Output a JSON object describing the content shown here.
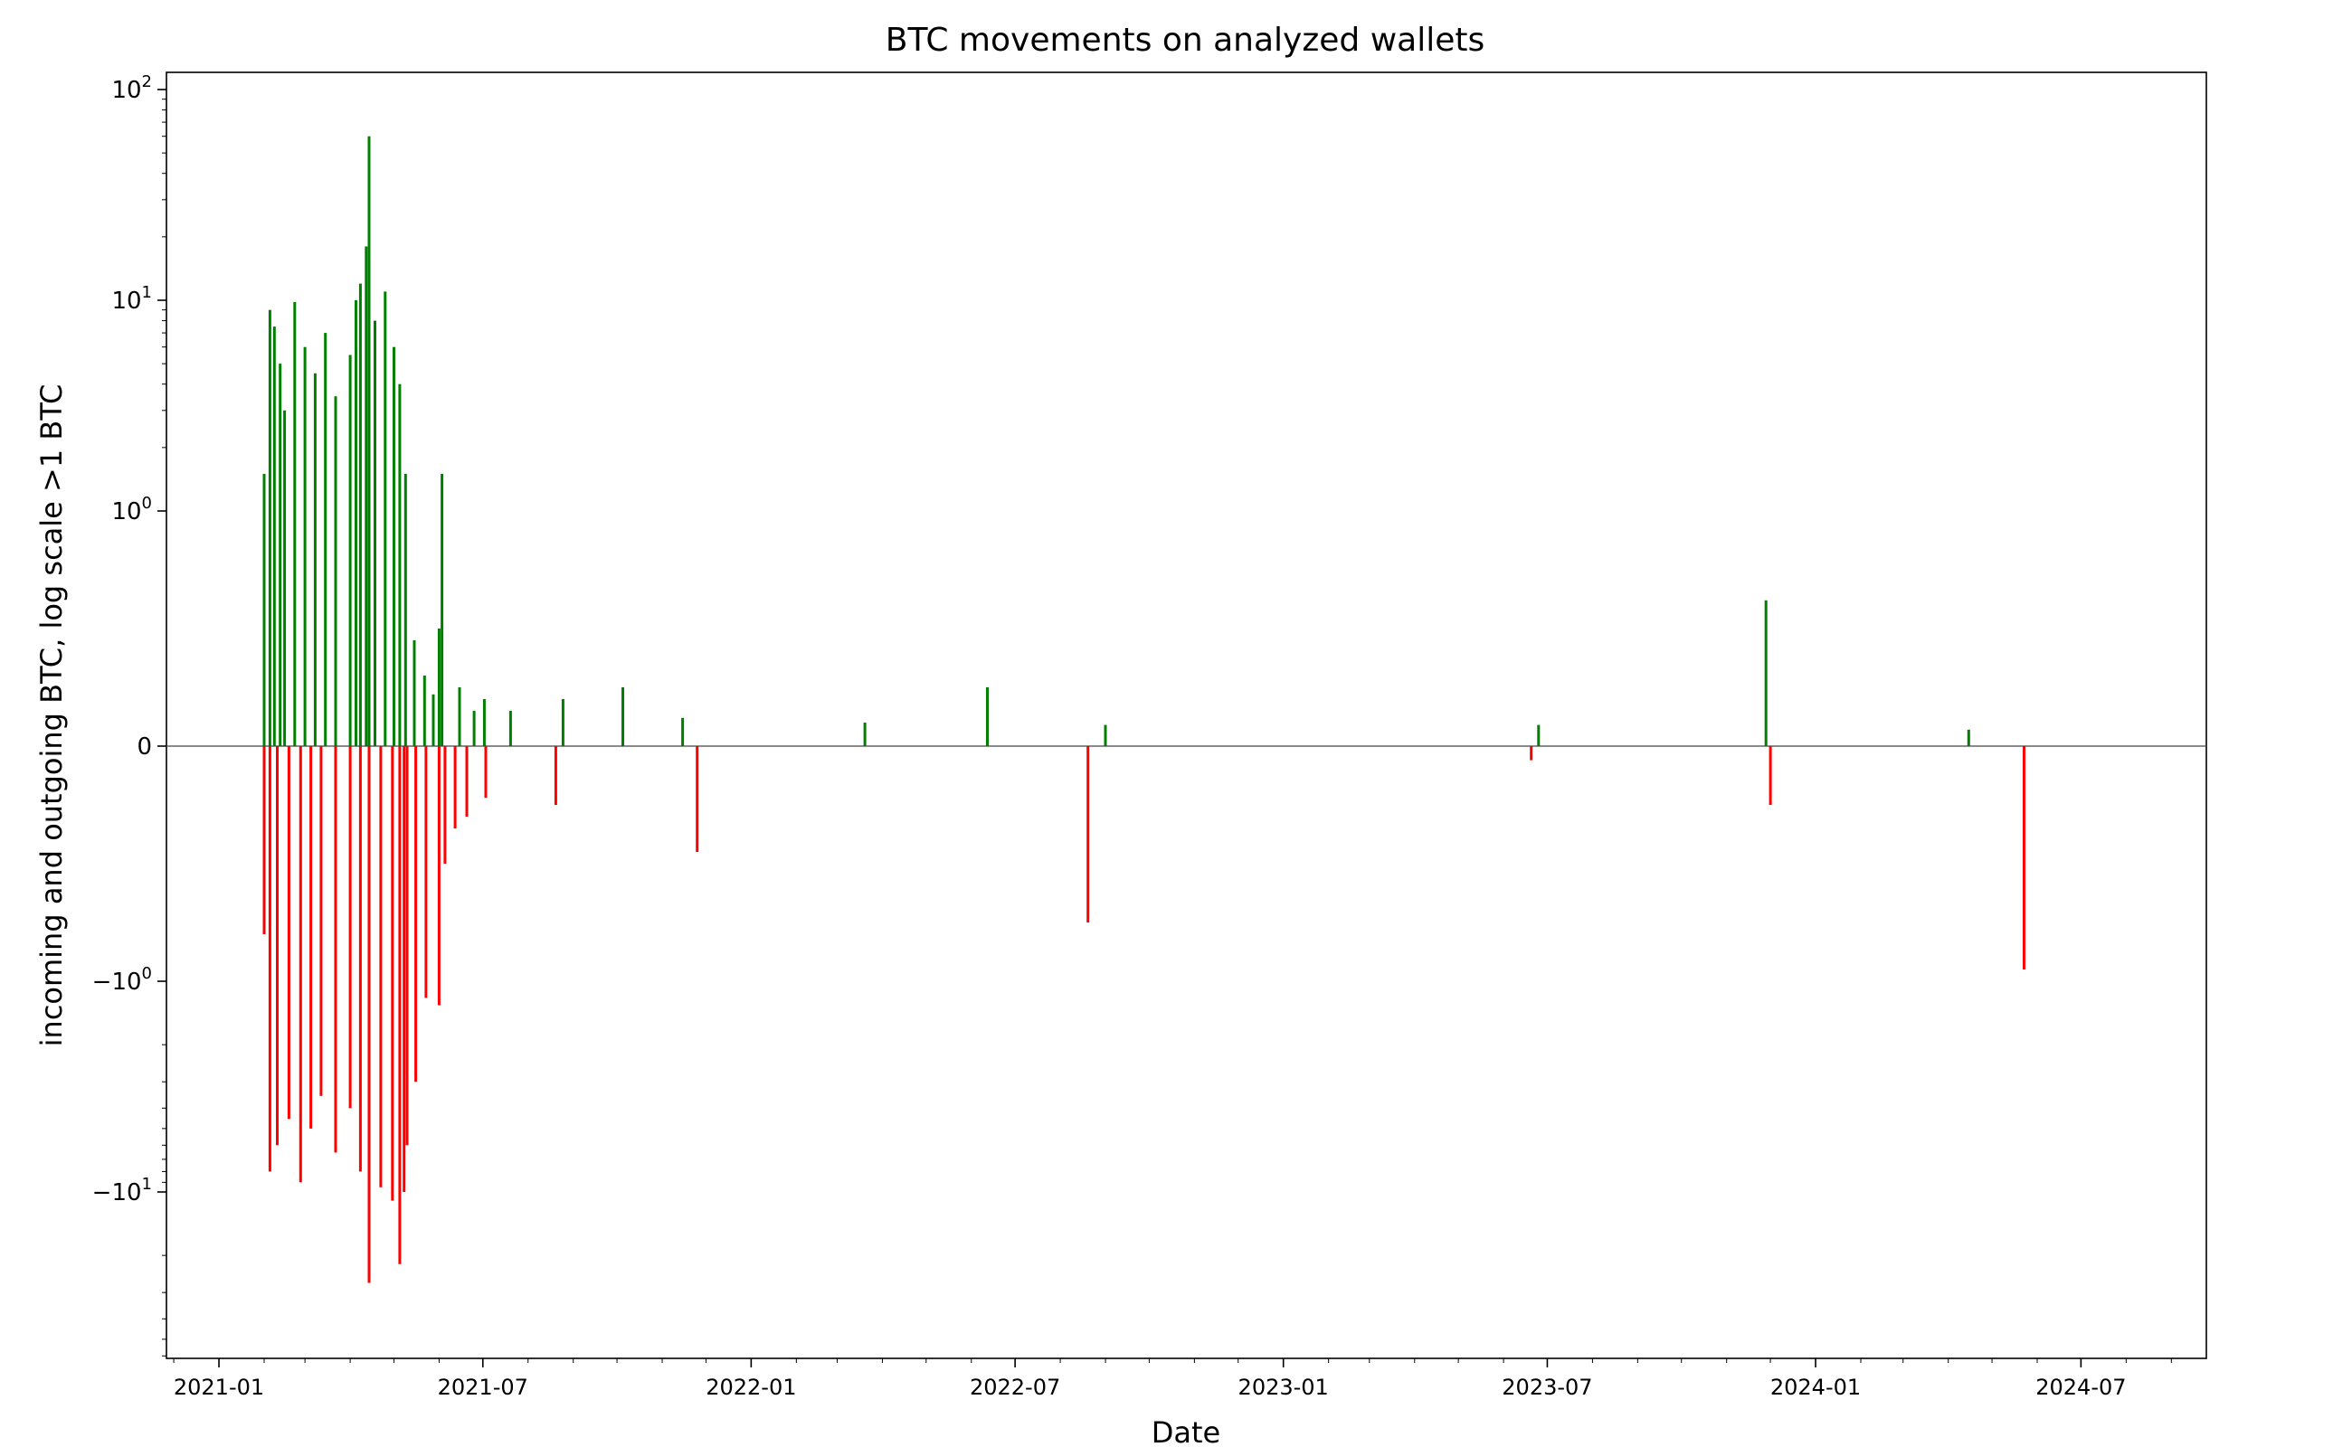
{
  "chart_data": {
    "type": "bar",
    "title": "BTC movements on analyzed wallets",
    "xlabel": "Date",
    "ylabel": "incoming and outgoing BTC, log scale >1 BTC",
    "yscale": "symlog",
    "ylim": [
      -70,
      100
    ],
    "xlim": [
      "2020-11-26",
      "2024-09-25"
    ],
    "grid": false,
    "legend": "none",
    "colors": {
      "incoming": "#008000",
      "outgoing": "#ff0000"
    },
    "x_ticks": [
      "2021-01",
      "2021-07",
      "2022-01",
      "2022-07",
      "2023-01",
      "2023-07",
      "2024-01",
      "2024-07"
    ],
    "y_ticks": [
      {
        "value": 100,
        "base": "10",
        "exp": "2",
        "sign": ""
      },
      {
        "value": 10,
        "base": "10",
        "exp": "1",
        "sign": ""
      },
      {
        "value": 1,
        "base": "10",
        "exp": "0",
        "sign": ""
      },
      {
        "value": 0,
        "label": "0"
      },
      {
        "value": -1,
        "base": "10",
        "exp": "0",
        "sign": "−"
      },
      {
        "value": -10,
        "base": "10",
        "exp": "1",
        "sign": "−"
      }
    ],
    "series": [
      {
        "key": "incoming",
        "points": [
          [
            "2021-02-01",
            1.5
          ],
          [
            "2021-02-05",
            9.0
          ],
          [
            "2021-02-08",
            7.5
          ],
          [
            "2021-02-12",
            5.0
          ],
          [
            "2021-02-15",
            3.0
          ],
          [
            "2021-02-22",
            9.8
          ],
          [
            "2021-03-01",
            6.0
          ],
          [
            "2021-03-08",
            4.5
          ],
          [
            "2021-03-15",
            7.0
          ],
          [
            "2021-03-22",
            3.5
          ],
          [
            "2021-04-01",
            5.5
          ],
          [
            "2021-04-05",
            10.0
          ],
          [
            "2021-04-08",
            12.0
          ],
          [
            "2021-04-12",
            18.0
          ],
          [
            "2021-04-14",
            60.0
          ],
          [
            "2021-04-18",
            8.0
          ],
          [
            "2021-04-25",
            11.0
          ],
          [
            "2021-05-01",
            6.0
          ],
          [
            "2021-05-05",
            4.0
          ],
          [
            "2021-05-09",
            1.5
          ],
          [
            "2021-05-15",
            0.45
          ],
          [
            "2021-05-22",
            0.3
          ],
          [
            "2021-05-28",
            0.22
          ],
          [
            "2021-06-01",
            0.5
          ],
          [
            "2021-06-03",
            1.5
          ],
          [
            "2021-06-15",
            0.25
          ],
          [
            "2021-06-25",
            0.15
          ],
          [
            "2021-07-02",
            0.2
          ],
          [
            "2021-07-20",
            0.15
          ],
          [
            "2021-08-25",
            0.2
          ],
          [
            "2021-10-05",
            0.25
          ],
          [
            "2021-11-15",
            0.12
          ],
          [
            "2022-03-20",
            0.1
          ],
          [
            "2022-06-12",
            0.25
          ],
          [
            "2022-09-01",
            0.09
          ],
          [
            "2023-06-25",
            0.09
          ],
          [
            "2023-11-28",
            0.62
          ],
          [
            "2024-04-15",
            0.07
          ]
        ]
      },
      {
        "key": "outgoing",
        "points": [
          [
            "2021-02-01",
            -0.8
          ],
          [
            "2021-02-05",
            -8.0
          ],
          [
            "2021-02-10",
            -6.0
          ],
          [
            "2021-02-18",
            -4.5
          ],
          [
            "2021-02-26",
            -9.0
          ],
          [
            "2021-03-05",
            -5.0
          ],
          [
            "2021-03-12",
            -3.5
          ],
          [
            "2021-03-22",
            -6.5
          ],
          [
            "2021-04-01",
            -4.0
          ],
          [
            "2021-04-08",
            -8.0
          ],
          [
            "2021-04-14",
            -27.0
          ],
          [
            "2021-04-22",
            -9.5
          ],
          [
            "2021-04-30",
            -11.0
          ],
          [
            "2021-05-05",
            -22.0
          ],
          [
            "2021-05-08",
            -10.0
          ],
          [
            "2021-05-10",
            -6.0
          ],
          [
            "2021-05-16",
            -3.0
          ],
          [
            "2021-05-23",
            -1.2
          ],
          [
            "2021-06-01",
            -1.3
          ],
          [
            "2021-06-05",
            -0.5
          ],
          [
            "2021-06-12",
            -0.35
          ],
          [
            "2021-06-20",
            -0.3
          ],
          [
            "2021-07-03",
            -0.22
          ],
          [
            "2021-08-20",
            -0.25
          ],
          [
            "2021-11-25",
            -0.45
          ],
          [
            "2022-08-20",
            -0.75
          ],
          [
            "2023-06-20",
            -0.06
          ],
          [
            "2023-12-01",
            -0.25
          ],
          [
            "2024-05-23",
            -0.95
          ]
        ]
      }
    ]
  }
}
